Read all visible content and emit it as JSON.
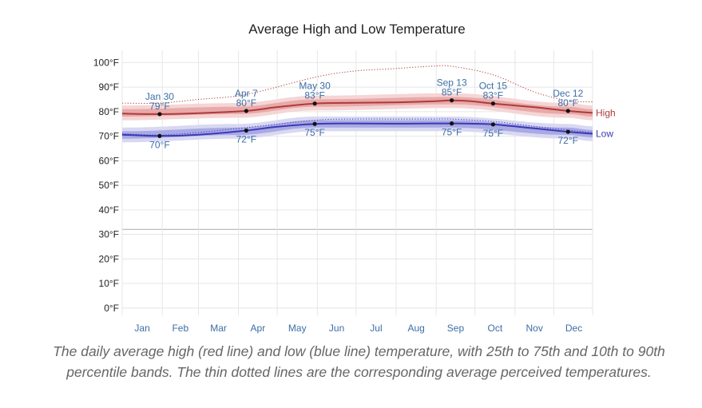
{
  "caption": "The daily average high (red line) and low (blue line) temperature, with 25th to 75th and 10th to 90th percentile bands. The thin dotted lines are the corresponding average perceived temperatures.",
  "colors": {
    "high_line": "#b03a3a",
    "high_band_inner": "#e8a9a9",
    "high_band_outer": "#f5d5d5",
    "low_line": "#3a3ab5",
    "low_band_inner": "#a9a9e4",
    "low_band_outer": "#d8d8f3",
    "label_blue": "#3c6ea6",
    "grid": "#e6e6e6",
    "freezing_line": "#bdbdbd"
  },
  "chart_data": {
    "type": "line",
    "title": "Average High and Low Temperature",
    "xlabel": "",
    "ylabel": "",
    "x_ticks": [
      "Jan",
      "Feb",
      "Mar",
      "Apr",
      "May",
      "Jun",
      "Jul",
      "Aug",
      "Sep",
      "Oct",
      "Nov",
      "Dec"
    ],
    "y_ticks": [
      "0°F",
      "10°F",
      "20°F",
      "30°F",
      "40°F",
      "50°F",
      "60°F",
      "70°F",
      "80°F",
      "90°F",
      "100°F"
    ],
    "ylim": [
      -3,
      105
    ],
    "xlim_day_of_year": [
      1,
      365
    ],
    "grid": true,
    "freezing_line_value": 32,
    "series": [
      {
        "name": "High",
        "points": [
          {
            "day": 1,
            "value": 79.2
          },
          {
            "day": 30,
            "value": 79.0
          },
          {
            "day": 60,
            "value": 79.4
          },
          {
            "day": 97,
            "value": 80.3
          },
          {
            "day": 120,
            "value": 81.8
          },
          {
            "day": 150,
            "value": 83.3
          },
          {
            "day": 180,
            "value": 83.6
          },
          {
            "day": 210,
            "value": 83.8
          },
          {
            "day": 240,
            "value": 84.2
          },
          {
            "day": 256,
            "value": 84.6
          },
          {
            "day": 270,
            "value": 84.3
          },
          {
            "day": 288,
            "value": 83.3
          },
          {
            "day": 320,
            "value": 81.8
          },
          {
            "day": 346,
            "value": 80.3
          },
          {
            "day": 365,
            "value": 79.5
          }
        ],
        "band_25_75": [
          [
            1,
            78,
            81
          ],
          [
            90,
            79,
            82
          ],
          [
            150,
            82,
            85
          ],
          [
            256,
            83,
            86
          ],
          [
            346,
            79,
            82
          ],
          [
            365,
            78,
            81
          ]
        ],
        "band_10_90": [
          [
            1,
            76.5,
            82.5
          ],
          [
            90,
            77.5,
            83.5
          ],
          [
            150,
            80.5,
            86.5
          ],
          [
            256,
            81.5,
            87.5
          ],
          [
            346,
            77.5,
            83.5
          ],
          [
            365,
            76.5,
            82.5
          ]
        ],
        "perceived": [
          [
            1,
            83.5
          ],
          [
            30,
            83.5
          ],
          [
            60,
            85
          ],
          [
            97,
            87
          ],
          [
            150,
            94
          ],
          [
            180,
            96.5
          ],
          [
            210,
            97.5
          ],
          [
            240,
            98.5
          ],
          [
            256,
            98.5
          ],
          [
            288,
            95
          ],
          [
            320,
            88
          ],
          [
            346,
            84.5
          ],
          [
            365,
            84
          ]
        ],
        "annotations": [
          {
            "day": 30,
            "value": 79.0,
            "date": "Jan 30",
            "label": "79°F"
          },
          {
            "day": 97,
            "value": 80.3,
            "date": "Apr 7",
            "label": "80°F"
          },
          {
            "day": 150,
            "value": 83.3,
            "date": "May 30",
            "label": "83°F"
          },
          {
            "day": 256,
            "value": 84.6,
            "date": "Sep 13",
            "label": "85°F"
          },
          {
            "day": 288,
            "value": 83.3,
            "date": "Oct 15",
            "label": "83°F"
          },
          {
            "day": 346,
            "value": 80.3,
            "date": "Dec 12",
            "label": "80°F"
          }
        ]
      },
      {
        "name": "Low",
        "points": [
          {
            "day": 1,
            "value": 70.6
          },
          {
            "day": 30,
            "value": 70.1
          },
          {
            "day": 60,
            "value": 70.6
          },
          {
            "day": 97,
            "value": 72.3
          },
          {
            "day": 120,
            "value": 73.8
          },
          {
            "day": 150,
            "value": 75.0
          },
          {
            "day": 180,
            "value": 75.2
          },
          {
            "day": 210,
            "value": 75.1
          },
          {
            "day": 240,
            "value": 75.2
          },
          {
            "day": 256,
            "value": 75.2
          },
          {
            "day": 270,
            "value": 75.1
          },
          {
            "day": 288,
            "value": 74.8
          },
          {
            "day": 320,
            "value": 73.2
          },
          {
            "day": 346,
            "value": 71.8
          },
          {
            "day": 365,
            "value": 71.0
          }
        ],
        "band_25_75": [
          [
            1,
            69,
            72
          ],
          [
            90,
            70.5,
            73.5
          ],
          [
            150,
            73.5,
            76.5
          ],
          [
            256,
            73.5,
            76.5
          ],
          [
            346,
            70.5,
            73.5
          ],
          [
            365,
            69.5,
            72.5
          ]
        ],
        "band_10_90": [
          [
            1,
            67.5,
            73.5
          ],
          [
            90,
            69,
            75
          ],
          [
            150,
            72,
            78
          ],
          [
            256,
            72,
            78
          ],
          [
            346,
            69,
            75
          ],
          [
            365,
            68,
            74
          ]
        ],
        "perceived": [
          [
            1,
            71
          ],
          [
            30,
            70.5
          ],
          [
            60,
            71.5
          ],
          [
            97,
            73.5
          ],
          [
            150,
            76.5
          ],
          [
            180,
            77
          ],
          [
            210,
            77
          ],
          [
            240,
            77
          ],
          [
            256,
            77
          ],
          [
            288,
            76
          ],
          [
            320,
            74
          ],
          [
            346,
            72.5
          ],
          [
            365,
            71.5
          ]
        ],
        "annotations": [
          {
            "day": 30,
            "value": 70.1,
            "label": "70°F"
          },
          {
            "day": 97,
            "value": 72.3,
            "label": "72°F"
          },
          {
            "day": 150,
            "value": 75.0,
            "label": "75°F"
          },
          {
            "day": 256,
            "value": 75.2,
            "label": "75°F"
          },
          {
            "day": 288,
            "value": 74.8,
            "label": "75°F"
          },
          {
            "day": 346,
            "value": 71.8,
            "label": "72°F"
          }
        ]
      }
    ]
  }
}
